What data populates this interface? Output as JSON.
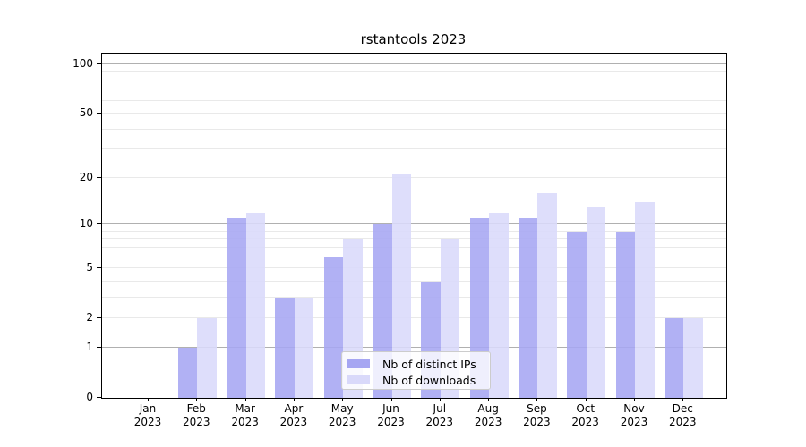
{
  "chart_data": {
    "type": "bar",
    "title": "rstantools 2023",
    "x_months": [
      "Jan",
      "Feb",
      "Mar",
      "Apr",
      "May",
      "Jun",
      "Jul",
      "Aug",
      "Sep",
      "Oct",
      "Nov",
      "Dec"
    ],
    "x_year": "2023",
    "series": [
      {
        "name": "Nb of distinct IPs",
        "color": "#a6a6f2",
        "values": [
          0,
          1,
          11,
          3,
          6,
          10,
          4,
          11,
          11,
          9,
          9,
          2
        ]
      },
      {
        "name": "Nb of downloads",
        "color": "#d9d9fa",
        "values": [
          0,
          2,
          12,
          3,
          8,
          21,
          8,
          12,
          16,
          13,
          14,
          2
        ]
      }
    ],
    "y_scale": "log1p",
    "y_max": 116,
    "y_ticks": [
      0,
      1,
      2,
      5,
      10,
      20,
      50,
      100
    ],
    "gridlines_major": [
      1,
      10,
      100
    ],
    "gridlines_minor": [
      2,
      3,
      4,
      5,
      6,
      7,
      8,
      9,
      20,
      30,
      40,
      50,
      60,
      70,
      80,
      90
    ],
    "legend_position": "inside-bottom-center",
    "colors": {
      "grid_major": "#b0b0b0",
      "grid_minor": "#e9e9e9",
      "axis": "#000000",
      "legend_border": "#cccccc"
    }
  }
}
